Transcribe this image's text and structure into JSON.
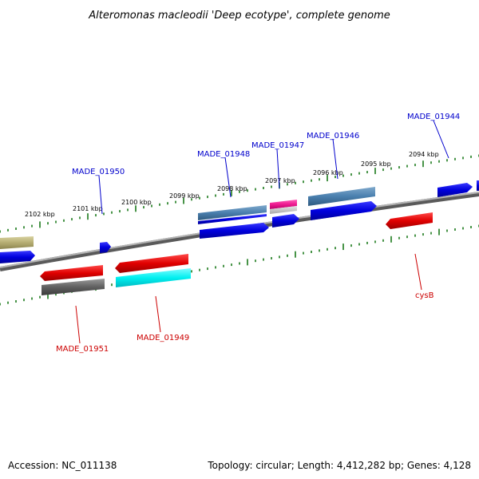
{
  "title": "Alteromonas macleodii 'Deep ecotype', complete genome",
  "scale_labels": [
    "2102 kbp",
    "2101 kbp",
    "2100 kbp",
    "2099 kbp",
    "2098 kbp",
    "2097 kbp",
    "2096 kbp",
    "2095 kbp",
    "2094 kbp"
  ],
  "gene_labels_top": [
    "MADE_01950",
    "MADE_01948",
    "MADE_01947",
    "MADE_01946",
    "MADE_01944"
  ],
  "gene_labels_bottom": [
    "MADE_01951",
    "MADE_01949",
    "cysB"
  ],
  "accession": "Accession: NC_011138",
  "topology": "Topology: circular; Length: 4,412,282 bp; Genes: 4,128",
  "colors": {
    "label_top": "#0000cc",
    "label_bottom": "#cc0000",
    "scale_ticks": "#1a7a1a",
    "backbone": "#888888"
  }
}
